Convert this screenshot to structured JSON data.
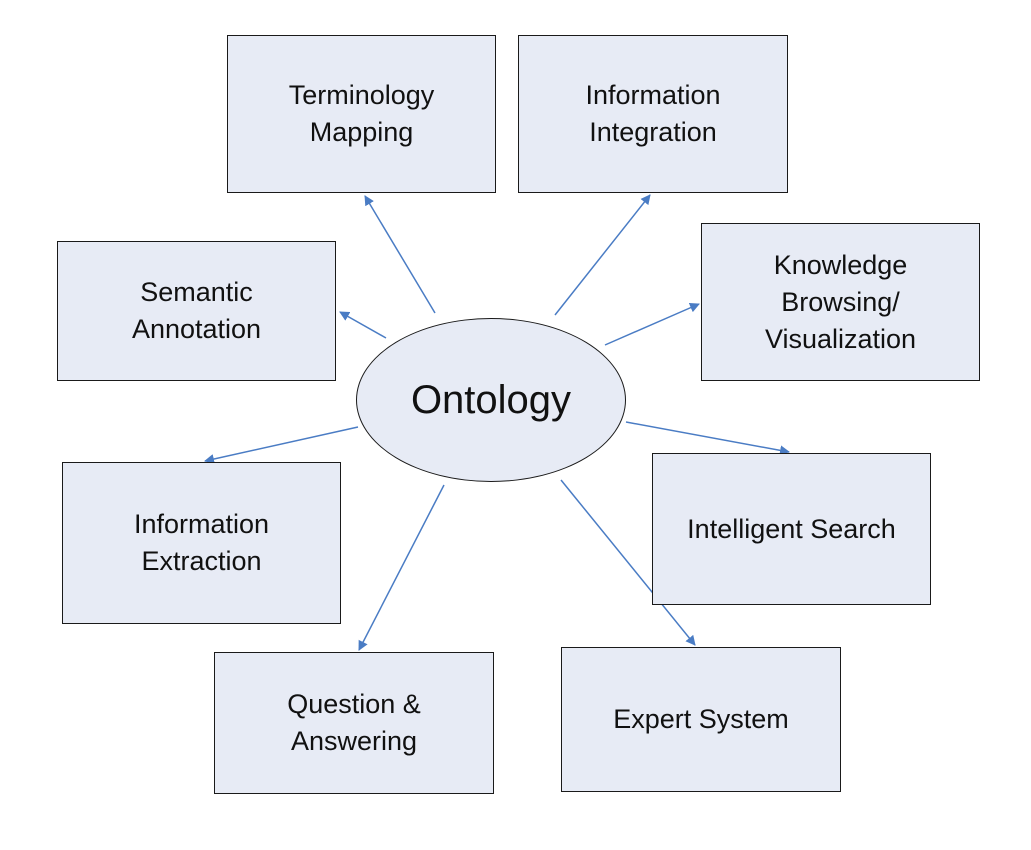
{
  "center": {
    "label": "Ontology"
  },
  "nodes": [
    {
      "id": "terminology",
      "lines": [
        "Terminology",
        "Mapping"
      ]
    },
    {
      "id": "integration",
      "lines": [
        "Information",
        "Integration"
      ]
    },
    {
      "id": "semantic",
      "lines": [
        "Semantic",
        "Annotation"
      ]
    },
    {
      "id": "knowledge",
      "lines": [
        "Knowledge",
        "Browsing/",
        "Visualization"
      ]
    },
    {
      "id": "extraction",
      "lines": [
        "Information",
        "Extraction"
      ]
    },
    {
      "id": "search",
      "lines": [
        "Intelligent Search"
      ]
    },
    {
      "id": "question",
      "lines": [
        "Question &",
        "Answering"
      ]
    },
    {
      "id": "expert",
      "lines": [
        "Expert System"
      ]
    }
  ],
  "colors": {
    "fill": "#e7ebf5",
    "border": "#1a1a1a",
    "arrow": "#4a7cc4"
  }
}
